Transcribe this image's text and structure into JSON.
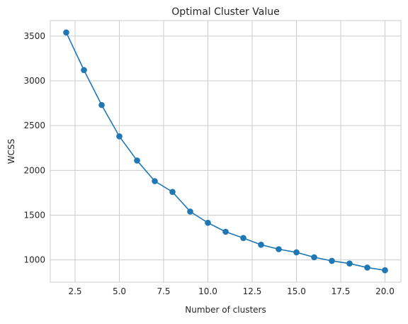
{
  "chart_data": {
    "type": "line",
    "title": "Optimal Cluster Value",
    "xlabel": "Number of clusters",
    "ylabel": "WCSS",
    "x": [
      2,
      3,
      4,
      5,
      6,
      7,
      8,
      9,
      10,
      11,
      12,
      13,
      14,
      15,
      16,
      17,
      18,
      19,
      20
    ],
    "series": [
      {
        "values": [
          3540,
          3120,
          2730,
          2380,
          2110,
          1880,
          1760,
          1540,
          1415,
          1315,
          1245,
          1170,
          1120,
          1085,
          1030,
          990,
          960,
          915,
          885
        ],
        "color": "#1f77b4",
        "marker": "circle"
      }
    ],
    "xlim": [
      1.1,
      20.9
    ],
    "ylim": [
      752,
      3673
    ],
    "xticks": [
      2.5,
      5.0,
      7.5,
      10.0,
      12.5,
      15.0,
      17.5,
      20.0
    ],
    "xtick_labels": [
      "2.5",
      "5.0",
      "7.5",
      "10.0",
      "12.5",
      "15.0",
      "17.5",
      "20.0"
    ],
    "yticks": [
      1000,
      1500,
      2000,
      2500,
      3000,
      3500
    ],
    "ytick_labels": [
      "1000",
      "1500",
      "2000",
      "2500",
      "3000",
      "3500"
    ],
    "grid": true,
    "style": {
      "grid_color": "#cccccc",
      "spine_color": "#cccccc",
      "line_color": "#1f77b4"
    }
  }
}
